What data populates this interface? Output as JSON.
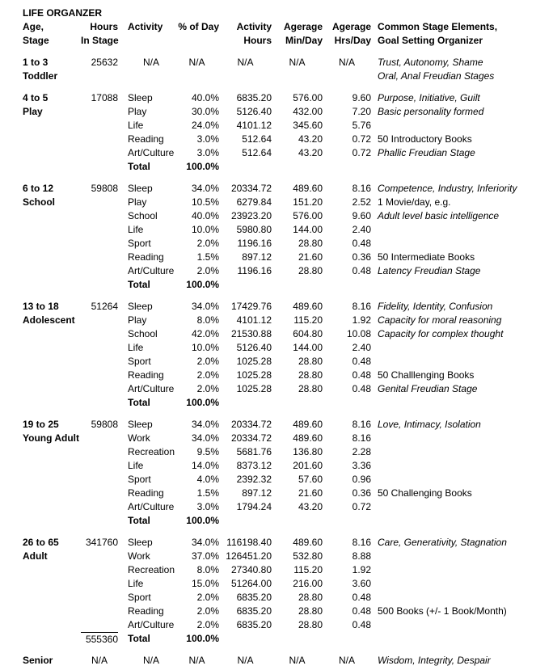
{
  "title": "LIFE ORGANZER",
  "colors": {
    "text": "#000000",
    "background": "#ffffff",
    "sum_rule": "#000000"
  },
  "header": [
    {
      "lines": [
        "Age,",
        "Stage"
      ],
      "align": "left"
    },
    {
      "lines": [
        "Hours",
        "In Stage"
      ],
      "align": "right"
    },
    {
      "lines": [
        "Activity",
        ""
      ],
      "align": "left"
    },
    {
      "lines": [
        "% of Day",
        ""
      ],
      "align": "right"
    },
    {
      "lines": [
        "Activity",
        "Hours"
      ],
      "align": "right"
    },
    {
      "lines": [
        "Agerage",
        "Min/Day"
      ],
      "align": "right"
    },
    {
      "lines": [
        "Agerage",
        "Hrs/Day"
      ],
      "align": "right"
    },
    {
      "lines": [
        "Common Stage Elements,",
        "Goal Setting Organizer"
      ],
      "align": "left"
    }
  ],
  "sections": [
    {
      "type": "na",
      "age": "1 to 3",
      "stage": "Toddler",
      "hours": "25632",
      "na": [
        "N/A",
        "N/A",
        "N/A",
        "N/A",
        "N/A"
      ],
      "notes": [
        {
          "text": "Trust, Autonomy, Shame",
          "italic": true
        },
        {
          "text": "Oral, Anal Freudian Stages",
          "italic": true
        }
      ]
    },
    {
      "type": "activities",
      "age": "4 to 5",
      "stage": "Play",
      "hours": "17088",
      "rows": [
        {
          "activity": "Sleep",
          "pct": "40.0%",
          "hours": "6835.20",
          "min": "576.00",
          "hrs": "9.60",
          "note": "Purpose, Initiative, Guilt",
          "italic": true
        },
        {
          "activity": "Play",
          "pct": "30.0%",
          "hours": "5126.40",
          "min": "432.00",
          "hrs": "7.20",
          "note": "Basic personality formed",
          "italic": true
        },
        {
          "activity": "Life",
          "pct": "24.0%",
          "hours": "4101.12",
          "min": "345.60",
          "hrs": "5.76",
          "note": "",
          "italic": false
        },
        {
          "activity": "Reading",
          "pct": "3.0%",
          "hours": "512.64",
          "min": "43.20",
          "hrs": "0.72",
          "note": "50 Introductory Books",
          "italic": false
        },
        {
          "activity": "Art/Culture",
          "pct": "3.0%",
          "hours": "512.64",
          "min": "43.20",
          "hrs": "0.72",
          "note": "Phallic Freudian Stage",
          "italic": true
        }
      ],
      "total": {
        "label": "Total",
        "pct": "100.0%"
      }
    },
    {
      "type": "activities",
      "age": "6 to 12",
      "stage": "School",
      "hours": "59808",
      "rows": [
        {
          "activity": "Sleep",
          "pct": "34.0%",
          "hours": "20334.72",
          "min": "489.60",
          "hrs": "8.16",
          "note": "Competence, Industry, Inferiority",
          "italic": true
        },
        {
          "activity": "Play",
          "pct": "10.5%",
          "hours": "6279.84",
          "min": "151.20",
          "hrs": "2.52",
          "note": "1 Movie/day, e.g.",
          "italic": false
        },
        {
          "activity": "School",
          "pct": "40.0%",
          "hours": "23923.20",
          "min": "576.00",
          "hrs": "9.60",
          "note": "Adult level basic intelligence",
          "italic": true
        },
        {
          "activity": "Life",
          "pct": "10.0%",
          "hours": "5980.80",
          "min": "144.00",
          "hrs": "2.40",
          "note": "",
          "italic": false
        },
        {
          "activity": "Sport",
          "pct": "2.0%",
          "hours": "1196.16",
          "min": "28.80",
          "hrs": "0.48",
          "note": "",
          "italic": false
        },
        {
          "activity": "Reading",
          "pct": "1.5%",
          "hours": "897.12",
          "min": "21.60",
          "hrs": "0.36",
          "note": "50 Intermediate Books",
          "italic": false
        },
        {
          "activity": "Art/Culture",
          "pct": "2.0%",
          "hours": "1196.16",
          "min": "28.80",
          "hrs": "0.48",
          "note": "Latency Freudian Stage",
          "italic": true
        }
      ],
      "total": {
        "label": "Total",
        "pct": "100.0%"
      }
    },
    {
      "type": "activities",
      "age": "13 to 18",
      "stage": "Adolescent",
      "hours": "51264",
      "rows": [
        {
          "activity": "Sleep",
          "pct": "34.0%",
          "hours": "17429.76",
          "min": "489.60",
          "hrs": "8.16",
          "note": "Fidelity, Identity, Confusion",
          "italic": true
        },
        {
          "activity": "Play",
          "pct": "8.0%",
          "hours": "4101.12",
          "min": "115.20",
          "hrs": "1.92",
          "note": "Capacity for moral reasoning",
          "italic": true
        },
        {
          "activity": "School",
          "pct": "42.0%",
          "hours": "21530.88",
          "min": "604.80",
          "hrs": "10.08",
          "note": "Capacity for complex thought",
          "italic": true
        },
        {
          "activity": "Life",
          "pct": "10.0%",
          "hours": "5126.40",
          "min": "144.00",
          "hrs": "2.40",
          "note": "",
          "italic": false
        },
        {
          "activity": "Sport",
          "pct": "2.0%",
          "hours": "1025.28",
          "min": "28.80",
          "hrs": "0.48",
          "note": "",
          "italic": false
        },
        {
          "activity": "Reading",
          "pct": "2.0%",
          "hours": "1025.28",
          "min": "28.80",
          "hrs": "0.48",
          "note": "50 Challlenging Books",
          "italic": false
        },
        {
          "activity": "Art/Culture",
          "pct": "2.0%",
          "hours": "1025.28",
          "min": "28.80",
          "hrs": "0.48",
          "note": "Genital Freudian Stage",
          "italic": true
        }
      ],
      "total": {
        "label": "Total",
        "pct": "100.0%"
      }
    },
    {
      "type": "activities",
      "age": "19 to 25",
      "stage": "Young Adult",
      "hours": "59808",
      "rows": [
        {
          "activity": "Sleep",
          "pct": "34.0%",
          "hours": "20334.72",
          "min": "489.60",
          "hrs": "8.16",
          "note": "Love, Intimacy, Isolation",
          "italic": true
        },
        {
          "activity": "Work",
          "pct": "34.0%",
          "hours": "20334.72",
          "min": "489.60",
          "hrs": "8.16",
          "note": "",
          "italic": false
        },
        {
          "activity": "Recreation",
          "pct": "9.5%",
          "hours": "5681.76",
          "min": "136.80",
          "hrs": "2.28",
          "note": "",
          "italic": false
        },
        {
          "activity": "Life",
          "pct": "14.0%",
          "hours": "8373.12",
          "min": "201.60",
          "hrs": "3.36",
          "note": "",
          "italic": false
        },
        {
          "activity": "Sport",
          "pct": "4.0%",
          "hours": "2392.32",
          "min": "57.60",
          "hrs": "0.96",
          "note": "",
          "italic": false
        },
        {
          "activity": "Reading",
          "pct": "1.5%",
          "hours": "897.12",
          "min": "21.60",
          "hrs": "0.36",
          "note": "50 Challenging Books",
          "italic": false
        },
        {
          "activity": "Art/Culture",
          "pct": "3.0%",
          "hours": "1794.24",
          "min": "43.20",
          "hrs": "0.72",
          "note": "",
          "italic": false
        }
      ],
      "total": {
        "label": "Total",
        "pct": "100.0%"
      }
    },
    {
      "type": "activities",
      "age": "26 to 65",
      "stage": "Adult",
      "hours": "341760",
      "rows": [
        {
          "activity": "Sleep",
          "pct": "34.0%",
          "hours": "116198.40",
          "min": "489.60",
          "hrs": "8.16",
          "note": "Care, Generativity, Stagnation",
          "italic": true
        },
        {
          "activity": "Work",
          "pct": "37.0%",
          "hours": "126451.20",
          "min": "532.80",
          "hrs": "8.88",
          "note": "",
          "italic": false
        },
        {
          "activity": "Recreation",
          "pct": "8.0%",
          "hours": "27340.80",
          "min": "115.20",
          "hrs": "1.92",
          "note": "",
          "italic": false
        },
        {
          "activity": "Life",
          "pct": "15.0%",
          "hours": "51264.00",
          "min": "216.00",
          "hrs": "3.60",
          "note": "",
          "italic": false
        },
        {
          "activity": "Sport",
          "pct": "2.0%",
          "hours": "6835.20",
          "min": "28.80",
          "hrs": "0.48",
          "note": "",
          "italic": false
        },
        {
          "activity": "Reading",
          "pct": "2.0%",
          "hours": "6835.20",
          "min": "28.80",
          "hrs": "0.48",
          "note": "500 Books (+/- 1 Book/Month)",
          "italic": false
        },
        {
          "activity": "Art/Culture",
          "pct": "2.0%",
          "hours": "6835.20",
          "min": "28.80",
          "hrs": "0.48",
          "note": "",
          "italic": false
        }
      ],
      "total": {
        "label": "Total",
        "pct": "100.0%",
        "sum_hours": "555360",
        "rule": true
      }
    }
  ],
  "senior": {
    "age": "Senior",
    "na": [
      "N/A",
      "N/A",
      "N/A",
      "N/A",
      "N/A",
      "N/A"
    ],
    "note": {
      "text": "Wisdom, Integrity, Despair",
      "italic": true
    }
  }
}
